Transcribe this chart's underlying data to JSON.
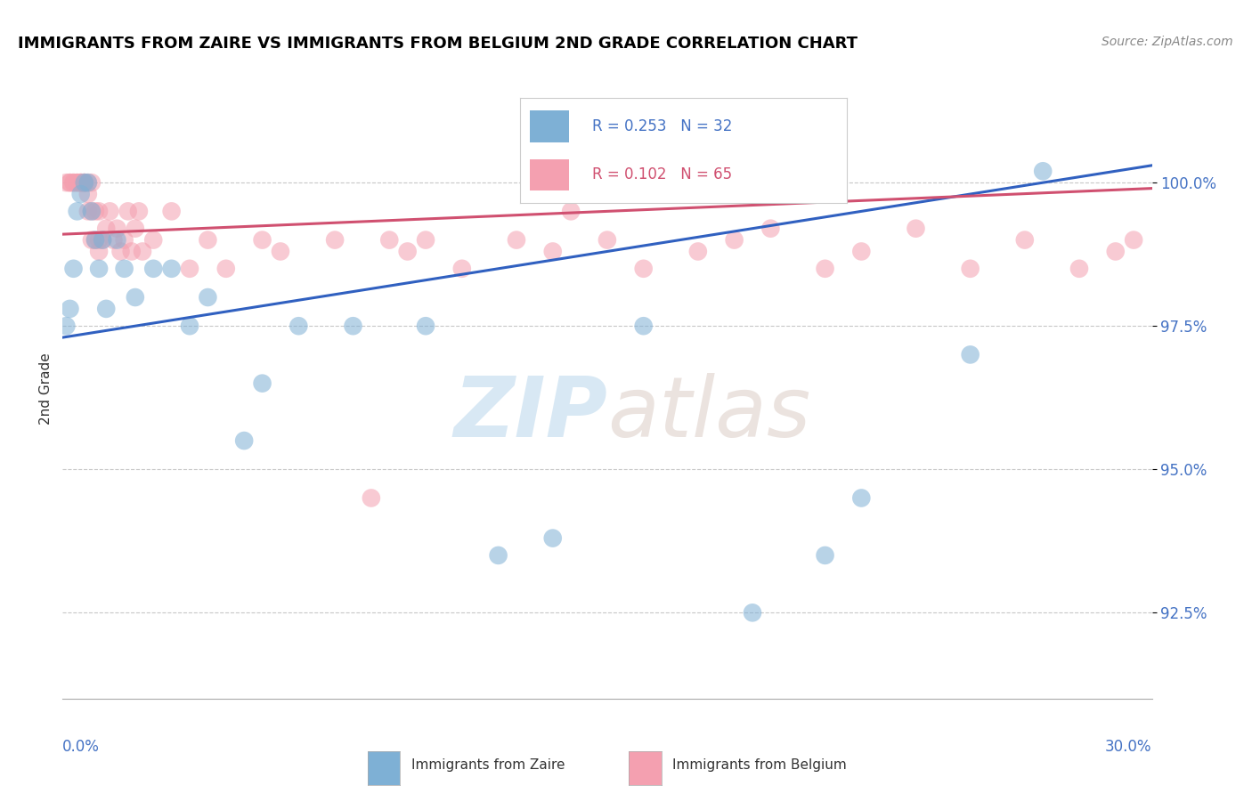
{
  "title": "IMMIGRANTS FROM ZAIRE VS IMMIGRANTS FROM BELGIUM 2ND GRADE CORRELATION CHART",
  "source": "Source: ZipAtlas.com",
  "ylabel": "2nd Grade",
  "y_ticks": [
    92.5,
    95.0,
    97.5,
    100.0
  ],
  "y_tick_labels": [
    "92.5%",
    "95.0%",
    "97.5%",
    "100.0%"
  ],
  "x_min": 0.0,
  "x_max": 30.0,
  "y_min": 91.0,
  "y_max": 101.8,
  "legend_zaire_R": "R = 0.253",
  "legend_zaire_N": "N = 32",
  "legend_belgium_R": "R = 0.102",
  "legend_belgium_N": "N = 65",
  "zaire_color": "#7EB0D5",
  "belgium_color": "#F4A0B0",
  "zaire_line_color": "#3060C0",
  "belgium_line_color": "#D05070",
  "watermark_zip": "ZIP",
  "watermark_atlas": "atlas",
  "zaire_points_x": [
    0.1,
    0.2,
    0.3,
    0.4,
    0.5,
    0.6,
    0.7,
    0.8,
    0.9,
    1.0,
    1.1,
    1.2,
    1.5,
    1.7,
    2.0,
    2.5,
    3.0,
    3.5,
    4.0,
    5.0,
    5.5,
    6.5,
    8.0,
    10.0,
    12.0,
    13.5,
    16.0,
    19.0,
    21.0,
    22.0,
    25.0,
    27.0
  ],
  "zaire_points_y": [
    97.5,
    97.8,
    98.5,
    99.5,
    99.8,
    100.0,
    100.0,
    99.5,
    99.0,
    98.5,
    99.0,
    97.8,
    99.0,
    98.5,
    98.0,
    98.5,
    98.5,
    97.5,
    98.0,
    95.5,
    96.5,
    97.5,
    97.5,
    97.5,
    93.5,
    93.8,
    97.5,
    92.5,
    93.5,
    94.5,
    97.0,
    100.2
  ],
  "belgium_points_x": [
    0.1,
    0.2,
    0.2,
    0.3,
    0.3,
    0.4,
    0.4,
    0.5,
    0.5,
    0.5,
    0.6,
    0.6,
    0.6,
    0.7,
    0.7,
    0.7,
    0.8,
    0.8,
    0.8,
    0.9,
    0.9,
    1.0,
    1.0,
    1.0,
    1.1,
    1.2,
    1.3,
    1.4,
    1.5,
    1.6,
    1.7,
    1.8,
    1.9,
    2.0,
    2.1,
    2.2,
    2.5,
    3.0,
    3.5,
    4.0,
    4.5,
    5.5,
    6.0,
    7.5,
    8.5,
    9.0,
    9.5,
    10.0,
    11.0,
    12.5,
    13.5,
    14.0,
    15.0,
    16.0,
    17.5,
    18.5,
    19.5,
    21.0,
    22.0,
    23.5,
    25.0,
    26.5,
    28.0,
    29.0,
    29.5
  ],
  "belgium_points_y": [
    100.0,
    100.0,
    100.0,
    100.0,
    100.0,
    100.0,
    100.0,
    100.0,
    100.0,
    100.0,
    100.0,
    100.0,
    100.0,
    100.0,
    99.8,
    99.5,
    100.0,
    99.5,
    99.0,
    99.5,
    99.0,
    99.5,
    99.0,
    98.8,
    99.0,
    99.2,
    99.5,
    99.0,
    99.2,
    98.8,
    99.0,
    99.5,
    98.8,
    99.2,
    99.5,
    98.8,
    99.0,
    99.5,
    98.5,
    99.0,
    98.5,
    99.0,
    98.8,
    99.0,
    94.5,
    99.0,
    98.8,
    99.0,
    98.5,
    99.0,
    98.8,
    99.5,
    99.0,
    98.5,
    98.8,
    99.0,
    99.2,
    98.5,
    98.8,
    99.2,
    98.5,
    99.0,
    98.5,
    98.8,
    99.0
  ]
}
